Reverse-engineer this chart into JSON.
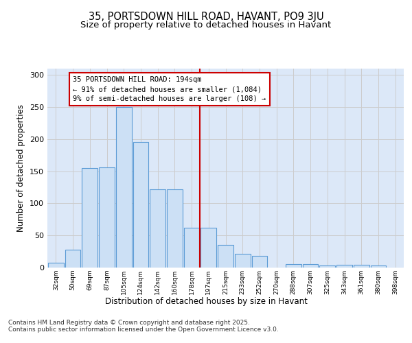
{
  "title": "35, PORTSDOWN HILL ROAD, HAVANT, PO9 3JU",
  "subtitle": "Size of property relative to detached houses in Havant",
  "xlabel": "Distribution of detached houses by size in Havant",
  "ylabel": "Number of detached properties",
  "bin_labels": [
    "32sqm",
    "50sqm",
    "69sqm",
    "87sqm",
    "105sqm",
    "124sqm",
    "142sqm",
    "160sqm",
    "178sqm",
    "197sqm",
    "215sqm",
    "233sqm",
    "252sqm",
    "270sqm",
    "288sqm",
    "307sqm",
    "325sqm",
    "343sqm",
    "361sqm",
    "380sqm",
    "398sqm"
  ],
  "bar_heights": [
    7,
    28,
    155,
    156,
    250,
    196,
    122,
    122,
    62,
    62,
    35,
    21,
    18,
    0,
    5,
    5,
    3,
    4,
    4,
    3,
    0
  ],
  "bar_color": "#cce0f5",
  "bar_edge_color": "#5b9bd5",
  "bar_edge_width": 0.8,
  "vline_x": 8.5,
  "vline_color": "#cc0000",
  "vline_linewidth": 1.5,
  "annotation_text": "35 PORTSDOWN HILL ROAD: 194sqm\n← 91% of detached houses are smaller (1,084)\n9% of semi-detached houses are larger (108) →",
  "annotation_box_color": "#cc0000",
  "annotation_fontsize": 7.5,
  "ylim": [
    0,
    310
  ],
  "yticks": [
    0,
    50,
    100,
    150,
    200,
    250,
    300
  ],
  "grid_color": "#cccccc",
  "background_color": "#dce8f8",
  "fig_background": "#ffffff",
  "title_fontsize": 10.5,
  "subtitle_fontsize": 9.5,
  "xlabel_fontsize": 8.5,
  "ylabel_fontsize": 8.5,
  "footer_text": "Contains HM Land Registry data © Crown copyright and database right 2025.\nContains public sector information licensed under the Open Government Licence v3.0.",
  "footer_fontsize": 6.5
}
